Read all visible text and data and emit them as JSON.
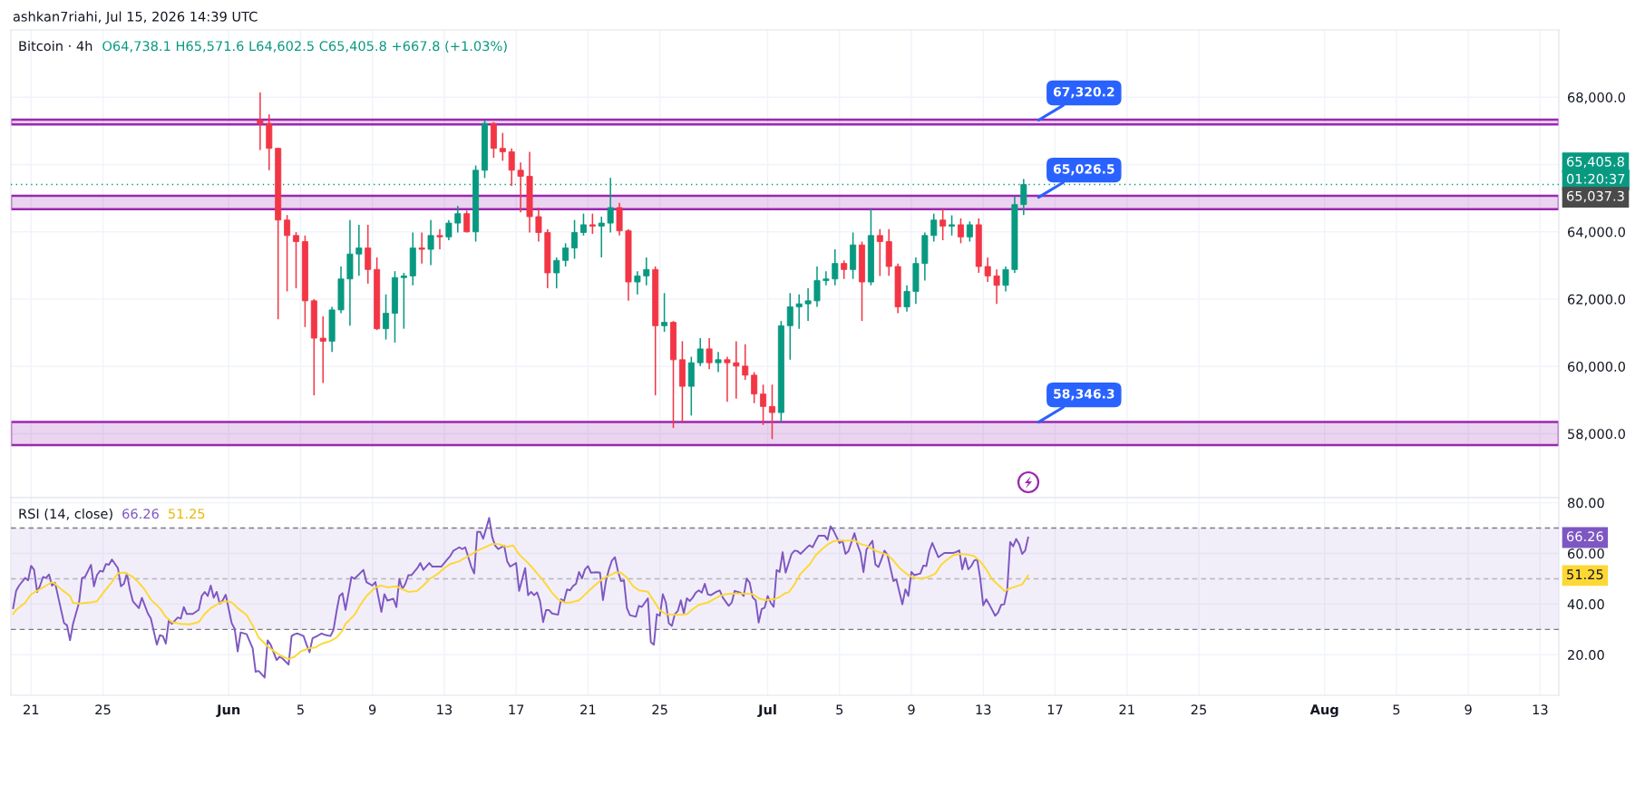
{
  "chart_data": [
    {
      "type": "candlestick",
      "title": "Bitcoin · 4h",
      "subtitle": "O64,738.1 H65,571.6 L64,602.5 C65,405.8 +667.8 (+1.03%)",
      "annotations": [
        "ashkan7riahi, Jul 15, 2026 14:39 UTC",
        "01:20:37",
        "65,037.3",
        {
          "text": "67,320.2",
          "x": "2026-07-16T02:00",
          "y": 67320.2
        },
        {
          "text": "65,026.5",
          "x": "2026-07-16T02:00",
          "y": 65026.5
        },
        {
          "text": "58,346.3",
          "x": "2026-07-16T02:00",
          "y": 58346.3
        }
      ],
      "x": [
        "2026-06-02T18:00",
        "2026-06-03T06:00",
        "2026-06-03T18:00",
        "2026-06-04T06:00",
        "2026-06-04T18:00",
        "2026-06-05T06:00",
        "2026-06-05T18:00",
        "2026-06-06T06:00",
        "2026-06-06T18:00",
        "2026-06-07T06:00",
        "2026-06-07T18:00",
        "2026-06-08T06:00",
        "2026-06-08T18:00",
        "2026-06-09T06:00",
        "2026-06-09T18:00",
        "2026-06-10T06:00",
        "2026-06-10T18:00",
        "2026-06-11T06:00",
        "2026-06-11T18:00",
        "2026-06-12T06:00",
        "2026-06-12T18:00",
        "2026-06-13T06:00",
        "2026-06-13T18:00",
        "2026-06-14T06:00",
        "2026-06-14T18:00",
        "2026-06-15T06:00",
        "2026-06-15T18:00",
        "2026-06-16T06:00",
        "2026-06-16T18:00",
        "2026-06-17T06:00",
        "2026-06-17T18:00",
        "2026-06-18T06:00",
        "2026-06-18T18:00",
        "2026-06-19T06:00",
        "2026-06-19T18:00",
        "2026-06-20T06:00",
        "2026-06-20T18:00",
        "2026-06-21T06:00",
        "2026-06-21T18:00",
        "2026-06-22T06:00",
        "2026-06-22T18:00",
        "2026-06-23T06:00",
        "2026-06-23T18:00",
        "2026-06-24T06:00",
        "2026-06-24T18:00",
        "2026-06-25T06:00",
        "2026-06-25T18:00",
        "2026-06-26T06:00",
        "2026-06-26T18:00",
        "2026-06-27T06:00",
        "2026-06-27T18:00",
        "2026-06-28T06:00",
        "2026-06-28T18:00",
        "2026-06-29T06:00",
        "2026-06-29T18:00",
        "2026-06-30T06:00",
        "2026-06-30T18:00",
        "2026-07-01T06:00",
        "2026-07-01T18:00",
        "2026-07-02T06:00",
        "2026-07-02T18:00",
        "2026-07-03T06:00",
        "2026-07-03T18:00",
        "2026-07-04T06:00",
        "2026-07-04T18:00",
        "2026-07-05T06:00",
        "2026-07-05T18:00",
        "2026-07-06T06:00",
        "2026-07-06T18:00",
        "2026-07-07T06:00",
        "2026-07-07T18:00",
        "2026-07-08T06:00",
        "2026-07-08T18:00",
        "2026-07-09T06:00",
        "2026-07-09T18:00",
        "2026-07-10T06:00",
        "2026-07-10T18:00",
        "2026-07-11T06:00",
        "2026-07-11T18:00",
        "2026-07-12T06:00",
        "2026-07-12T18:00",
        "2026-07-13T06:00",
        "2026-07-13T18:00",
        "2026-07-14T06:00",
        "2026-07-14T18:00",
        "2026-07-15T06:00"
      ],
      "ohlc": [
        [
          67310,
          68140,
          66430,
          67220
        ],
        [
          67220,
          67490,
          65830,
          66480
        ],
        [
          66480,
          66500,
          61400,
          64350
        ],
        [
          64350,
          64500,
          62230,
          63890
        ],
        [
          63890,
          63990,
          62320,
          63710
        ],
        [
          63710,
          63890,
          61170,
          61950
        ],
        [
          61950,
          62000,
          59140,
          60840
        ],
        [
          60840,
          61490,
          59510,
          60750
        ],
        [
          60750,
          61770,
          60430,
          61680
        ],
        [
          61680,
          62970,
          61580,
          62600
        ],
        [
          62600,
          64350,
          61210,
          63340
        ],
        [
          63340,
          64210,
          62690,
          63520
        ],
        [
          63520,
          64210,
          62460,
          62880
        ],
        [
          62880,
          63240,
          61080,
          61120
        ],
        [
          61120,
          62140,
          60800,
          61580
        ],
        [
          61580,
          62830,
          60710,
          62640
        ],
        [
          62640,
          62780,
          61120,
          62690
        ],
        [
          62690,
          63980,
          62410,
          63520
        ],
        [
          63520,
          63980,
          63060,
          63480
        ],
        [
          63480,
          64350,
          63010,
          63890
        ],
        [
          63890,
          64080,
          63480,
          63850
        ],
        [
          63850,
          64350,
          63750,
          64260
        ],
        [
          64260,
          64770,
          63980,
          64540
        ],
        [
          64540,
          64630,
          63980,
          64000
        ],
        [
          64000,
          65970,
          63710,
          65830
        ],
        [
          65830,
          67320,
          65600,
          67220
        ],
        [
          67220,
          67260,
          66200,
          66480
        ],
        [
          66480,
          66940,
          66110,
          66380
        ],
        [
          66380,
          66480,
          65370,
          65830
        ],
        [
          65830,
          66060,
          64580,
          65650
        ],
        [
          65650,
          66380,
          63980,
          64450
        ],
        [
          64450,
          64720,
          63710,
          63980
        ],
        [
          63980,
          64080,
          62320,
          62780
        ],
        [
          62780,
          63240,
          62320,
          63150
        ],
        [
          63150,
          63660,
          62970,
          63520
        ],
        [
          63520,
          64350,
          63200,
          63980
        ],
        [
          63980,
          64540,
          63890,
          64210
        ],
        [
          64210,
          64540,
          63940,
          64170
        ],
        [
          64170,
          64450,
          63240,
          64260
        ],
        [
          64260,
          65600,
          63980,
          64720
        ],
        [
          64720,
          64860,
          63890,
          64030
        ],
        [
          64030,
          64080,
          61950,
          62510
        ],
        [
          62510,
          62830,
          62140,
          62690
        ],
        [
          62690,
          63240,
          62410,
          62880
        ],
        [
          62880,
          62970,
          59140,
          61210
        ],
        [
          61210,
          62180,
          61030,
          61310
        ],
        [
          61310,
          61350,
          58170,
          60200
        ],
        [
          60200,
          60750,
          58350,
          59410
        ],
        [
          59410,
          60290,
          58540,
          60110
        ],
        [
          60110,
          60840,
          60010,
          60520
        ],
        [
          60520,
          60840,
          59920,
          60110
        ],
        [
          60110,
          60430,
          59830,
          60200
        ],
        [
          60200,
          60290,
          58950,
          60110
        ],
        [
          60110,
          60750,
          59040,
          60010
        ],
        [
          60010,
          60660,
          59600,
          59740
        ],
        [
          59740,
          59830,
          58910,
          59180
        ],
        [
          59180,
          59460,
          58260,
          58810
        ],
        [
          58810,
          59460,
          57840,
          58630
        ],
        [
          58630,
          61350,
          58350,
          61210
        ],
        [
          61210,
          62180,
          60200,
          61770
        ],
        [
          61770,
          62140,
          61120,
          61860
        ],
        [
          61860,
          62320,
          61350,
          61950
        ],
        [
          61950,
          62970,
          61770,
          62550
        ],
        [
          62550,
          62830,
          62410,
          62600
        ],
        [
          62600,
          63480,
          62410,
          63060
        ],
        [
          63060,
          63150,
          62600,
          62880
        ],
        [
          62880,
          63980,
          62600,
          63610
        ],
        [
          63610,
          63710,
          61350,
          62510
        ],
        [
          62510,
          64680,
          62410,
          63890
        ],
        [
          63890,
          64080,
          62690,
          63710
        ],
        [
          63710,
          64080,
          62690,
          62970
        ],
        [
          62970,
          63060,
          61580,
          61770
        ],
        [
          61770,
          62410,
          61630,
          62230
        ],
        [
          62230,
          63240,
          61860,
          63060
        ],
        [
          63060,
          63980,
          62550,
          63890
        ],
        [
          63890,
          64540,
          63710,
          64350
        ],
        [
          64350,
          64680,
          63750,
          64170
        ],
        [
          64170,
          64490,
          63890,
          64210
        ],
        [
          64210,
          64400,
          63660,
          63850
        ],
        [
          63850,
          64310,
          63710,
          64210
        ],
        [
          64210,
          64400,
          62780,
          62970
        ],
        [
          62970,
          63240,
          62510,
          62690
        ],
        [
          62690,
          62880,
          61860,
          62410
        ],
        [
          62410,
          62970,
          62230,
          62880
        ],
        [
          62880,
          65050,
          62780,
          64810
        ],
        [
          64810,
          65571.6,
          64500,
          65405.8
        ]
      ],
      "xlim": [
        "2026-05-19T21:00",
        "2026-08-14T01:00"
      ],
      "xticks": [
        {
          "value": "2026-05-21",
          "label": null
        },
        {
          "value": "2026-05-25",
          "label": null
        },
        {
          "value": "2026-06-01",
          "label": null
        },
        {
          "value": "2026-06-05",
          "label": null
        },
        {
          "value": "2026-06-09",
          "label": null
        },
        {
          "value": "2026-06-13",
          "label": null
        },
        {
          "value": "2026-06-17",
          "label": null
        },
        {
          "value": "2026-06-21",
          "label": null
        },
        {
          "value": "2026-06-25",
          "label": null
        },
        {
          "value": "2026-07-01",
          "label": null
        },
        {
          "value": "2026-07-05",
          "label": null
        },
        {
          "value": "2026-07-09",
          "label": null
        },
        {
          "value": "2026-07-13",
          "label": null
        },
        {
          "value": "2026-07-17",
          "label": null
        },
        {
          "value": "2026-07-21",
          "label": null
        },
        {
          "value": "2026-07-25",
          "label": null
        },
        {
          "value": "2026-08-01",
          "label": null
        },
        {
          "value": "2026-08-05",
          "label": null
        },
        {
          "value": "2026-08-09",
          "label": null
        },
        {
          "value": "2026-08-13",
          "label": null
        }
      ],
      "ylim": [
        56100,
        70000
      ],
      "yticks": [
        {
          "value": 58000,
          "label": "58,000.0"
        },
        {
          "value": 60000,
          "label": "60,000.0"
        },
        {
          "value": 62000,
          "label": "62,000.0"
        },
        {
          "value": 64000,
          "label": "64,000.0"
        },
        {
          "value": 66000,
          "label": null
        },
        {
          "value": 68000,
          "label": "68,000.0"
        }
      ],
      "tick_labels": "y",
      "grid": true,
      "bands": [
        {
          "axis": "y",
          "from": 67190,
          "to": 67330,
          "color": "#9c27b0"
        },
        {
          "axis": "y",
          "from": 64670,
          "to": 65070,
          "color": "#9c27b0"
        },
        {
          "axis": "y",
          "from": 57660,
          "to": 58346.3,
          "color": "#9c27b0"
        }
      ],
      "ref_lines": [
        {
          "axis": "y",
          "value": 65405.8,
          "label": "65,405.8",
          "color": "#089981",
          "line_style": "dotted"
        }
      ]
    },
    {
      "type": "line",
      "title": "RSI (14, close)",
      "annotations": [
        "66.26",
        "51.25"
      ],
      "series": [
        {
          "color": "#7e57c2",
          "x": [
            "2026-05-20T00:00",
            "2026-05-20T04:00",
            "2026-05-20T08:00",
            "2026-05-20T16:00",
            "2026-05-20T20:00",
            "2026-05-21T00:00",
            "2026-05-21T04:00",
            "2026-05-21T08:00",
            "2026-05-21T12:00",
            "2026-05-21T16:00",
            "2026-05-21T20:00",
            "2026-05-22T00:00",
            "2026-05-22T04:00",
            "2026-05-22T08:00",
            "2026-05-22T20:00",
            "2026-05-23T00:00",
            "2026-05-23T04:00",
            "2026-05-23T08:00",
            "2026-05-23T16:00",
            "2026-05-23T20:00",
            "2026-05-24T00:00",
            "2026-05-24T08:00",
            "2026-05-24T12:00",
            "2026-05-24T16:00",
            "2026-05-24T20:00",
            "2026-05-25T00:00",
            "2026-05-25T04:00",
            "2026-05-25T08:00",
            "2026-05-25T12:00",
            "2026-05-25T20:00",
            "2026-05-26T00:00",
            "2026-05-26T04:00",
            "2026-05-26T08:00",
            "2026-05-26T12:00",
            "2026-05-26T16:00",
            "2026-05-27T00:00",
            "2026-05-27T04:00",
            "2026-05-27T12:00",
            "2026-05-27T16:00",
            "2026-05-28T00:00",
            "2026-05-28T04:00",
            "2026-05-28T08:00",
            "2026-05-28T12:00",
            "2026-05-28T16:00",
            "2026-05-28T20:00",
            "2026-05-29T04:00",
            "2026-05-29T08:00",
            "2026-05-29T12:00",
            "2026-05-29T16:00",
            "2026-05-30T00:00",
            "2026-05-30T08:00",
            "2026-05-30T12:00",
            "2026-05-30T16:00",
            "2026-05-30T20:00",
            "2026-05-31T00:00",
            "2026-05-31T04:00",
            "2026-05-31T08:00",
            "2026-05-31T12:00",
            "2026-05-31T16:00",
            "2026-05-31T20:00",
            "2026-06-01T04:00",
            "2026-06-01T08:00",
            "2026-06-01T12:00",
            "2026-06-01T16:00",
            "2026-06-02T00:00",
            "2026-06-02T08:00",
            "2026-06-02T12:00",
            "2026-06-02T16:00",
            "2026-06-03T00:00",
            "2026-06-03T04:00",
            "2026-06-03T08:00",
            "2026-06-03T16:00",
            "2026-06-03T20:00",
            "2026-06-04T00:00",
            "2026-06-04T08:00",
            "2026-06-04T12:00",
            "2026-06-04T16:00",
            "2026-06-04T20:00",
            "2026-06-05T04:00",
            "2026-06-05T08:00",
            "2026-06-05T12:00",
            "2026-06-05T16:00",
            "2026-06-06T00:00",
            "2026-06-06T04:00",
            "2026-06-06T08:00",
            "2026-06-06T16:00",
            "2026-06-06T20:00",
            "2026-06-07T00:00",
            "2026-06-07T04:00",
            "2026-06-07T08:00",
            "2026-06-07T12:00",
            "2026-06-07T20:00",
            "2026-06-08T00:00",
            "2026-06-08T12:00",
            "2026-06-08T16:00",
            "2026-06-09T00:00",
            "2026-06-09T04:00",
            "2026-06-09T12:00",
            "2026-06-09T16:00",
            "2026-06-09T20:00",
            "2026-06-10T04:00",
            "2026-06-10T08:00",
            "2026-06-10T12:00",
            "2026-06-10T16:00",
            "2026-06-10T20:00",
            "2026-06-11T00:00",
            "2026-06-11T04:00",
            "2026-06-11T12:00",
            "2026-06-11T16:00",
            "2026-06-11T20:00",
            "2026-06-12T04:00",
            "2026-06-12T08:00",
            "2026-06-12T16:00",
            "2026-06-12T20:00",
            "2026-06-13T04:00",
            "2026-06-13T08:00",
            "2026-06-13T12:00",
            "2026-06-13T16:00",
            "2026-06-13T20:00",
            "2026-06-14T00:00",
            "2026-06-14T04:00",
            "2026-06-14T12:00",
            "2026-06-14T16:00",
            "2026-06-14T20:00",
            "2026-06-15T00:00",
            "2026-06-15T04:00",
            "2026-06-15T12:00",
            "2026-06-15T16:00",
            "2026-06-15T20:00",
            "2026-06-16T00:00",
            "2026-06-16T08:00",
            "2026-06-16T12:00",
            "2026-06-16T16:00",
            "2026-06-17T00:00",
            "2026-06-17T04:00",
            "2026-06-17T12:00",
            "2026-06-17T16:00",
            "2026-06-17T20:00",
            "2026-06-18T00:00",
            "2026-06-18T04:00",
            "2026-06-18T08:00",
            "2026-06-18T12:00",
            "2026-06-18T16:00",
            "2026-06-18T20:00",
            "2026-06-19T00:00",
            "2026-06-19T08:00",
            "2026-06-19T12:00",
            "2026-06-19T16:00",
            "2026-06-19T20:00",
            "2026-06-20T00:00",
            "2026-06-20T04:00",
            "2026-06-20T08:00",
            "2026-06-20T12:00",
            "2026-06-20T16:00",
            "2026-06-20T20:00",
            "2026-06-21T00:00",
            "2026-06-21T04:00",
            "2026-06-21T12:00",
            "2026-06-21T16:00",
            "2026-06-21T20:00",
            "2026-06-22T00:00",
            "2026-06-22T04:00",
            "2026-06-22T08:00",
            "2026-06-22T12:00",
            "2026-06-22T16:00",
            "2026-06-22T20:00",
            "2026-06-23T00:00",
            "2026-06-23T04:00",
            "2026-06-23T08:00",
            "2026-06-23T16:00",
            "2026-06-23T20:00",
            "2026-06-24T00:00",
            "2026-06-24T08:00",
            "2026-06-24T12:00",
            "2026-06-24T16:00",
            "2026-06-24T20:00",
            "2026-06-25T00:00",
            "2026-06-25T04:00",
            "2026-06-25T08:00",
            "2026-06-25T12:00",
            "2026-06-25T16:00",
            "2026-06-25T20:00",
            "2026-06-26T00:00",
            "2026-06-26T04:00",
            "2026-06-26T08:00",
            "2026-06-26T12:00",
            "2026-06-26T16:00",
            "2026-06-26T20:00",
            "2026-06-27T00:00",
            "2026-06-27T04:00",
            "2026-06-27T08:00",
            "2026-06-27T12:00",
            "2026-06-27T16:00",
            "2026-06-27T20:00",
            "2026-06-28T04:00",
            "2026-06-28T08:00",
            "2026-06-28T12:00",
            "2026-06-28T20:00",
            "2026-06-29T00:00",
            "2026-06-29T04:00",
            "2026-06-29T12:00",
            "2026-06-29T16:00",
            "2026-06-29T20:00",
            "2026-06-30T00:00",
            "2026-06-30T04:00",
            "2026-06-30T08:00",
            "2026-06-30T12:00",
            "2026-06-30T16:00",
            "2026-06-30T20:00",
            "2026-07-01T00:00",
            "2026-07-01T04:00",
            "2026-07-01T08:00",
            "2026-07-01T12:00",
            "2026-07-01T16:00",
            "2026-07-01T20:00",
            "2026-07-02T00:00",
            "2026-07-02T08:00",
            "2026-07-02T12:00",
            "2026-07-02T16:00",
            "2026-07-02T20:00",
            "2026-07-03T04:00",
            "2026-07-03T08:00",
            "2026-07-03T12:00",
            "2026-07-03T16:00",
            "2026-07-03T20:00",
            "2026-07-04T04:00",
            "2026-07-04T08:00",
            "2026-07-04T12:00",
            "2026-07-04T16:00",
            "2026-07-05T00:00",
            "2026-07-05T04:00",
            "2026-07-05T08:00",
            "2026-07-05T12:00",
            "2026-07-05T20:00",
            "2026-07-06T00:00",
            "2026-07-06T04:00",
            "2026-07-06T08:00",
            "2026-07-06T12:00",
            "2026-07-06T20:00",
            "2026-07-07T00:00",
            "2026-07-07T04:00",
            "2026-07-07T08:00",
            "2026-07-07T12:00",
            "2026-07-07T16:00",
            "2026-07-08T00:00",
            "2026-07-08T04:00",
            "2026-07-08T12:00",
            "2026-07-08T16:00",
            "2026-07-08T20:00",
            "2026-07-09T00:00",
            "2026-07-09T04:00",
            "2026-07-09T12:00",
            "2026-07-09T16:00",
            "2026-07-09T20:00",
            "2026-07-10T00:00",
            "2026-07-10T04:00",
            "2026-07-10T12:00",
            "2026-07-10T20:00",
            "2026-07-11T00:00",
            "2026-07-11T08:00",
            "2026-07-11T12:00",
            "2026-07-11T16:00",
            "2026-07-11T20:00",
            "2026-07-12T00:00",
            "2026-07-12T04:00",
            "2026-07-12T08:00",
            "2026-07-12T12:00",
            "2026-07-12T16:00",
            "2026-07-12T20:00",
            "2026-07-13T00:00",
            "2026-07-13T04:00",
            "2026-07-13T08:00",
            "2026-07-13T16:00",
            "2026-07-13T20:00",
            "2026-07-14T00:00",
            "2026-07-14T04:00",
            "2026-07-14T08:00",
            "2026-07-14T12:00",
            "2026-07-14T16:00",
            "2026-07-14T20:00",
            "2026-07-15T00:00",
            "2026-07-15T04:00",
            "2026-07-15T08:00",
            "2026-07-15T12:00"
          ],
          "values": [
            38.4,
            45.2,
            47.3,
            50.3,
            49.4,
            55.1,
            53.5,
            44.8,
            47.3,
            50.7,
            50.3,
            51.7,
            47.3,
            48.4,
            32.5,
            31.6,
            25.7,
            32.2,
            40.5,
            50.3,
            50.7,
            55.5,
            47.0,
            51.4,
            53.1,
            52.8,
            55.8,
            55.5,
            57.6,
            54.2,
            47.0,
            48.0,
            52.1,
            45.7,
            41.1,
            38.4,
            42.5,
            36.3,
            34.3,
            24.0,
            27.7,
            27.4,
            24.4,
            33.6,
            32.2,
            34.7,
            34.3,
            38.8,
            36.1,
            36.1,
            37.7,
            43.2,
            44.8,
            43.2,
            47.3,
            42.5,
            44.8,
            40.2,
            41.5,
            43.7,
            32.5,
            30.2,
            21.3,
            28.8,
            28.1,
            22.6,
            13.3,
            13.6,
            11.0,
            25.7,
            24.0,
            17.9,
            19.2,
            18.5,
            16.1,
            27.4,
            28.1,
            28.4,
            27.4,
            24.0,
            21.0,
            26.5,
            27.7,
            28.4,
            27.9,
            27.4,
            29.8,
            37.0,
            43.2,
            44.3,
            37.7,
            50.7,
            50.0,
            53.5,
            48.7,
            47.3,
            48.7,
            36.9,
            43.9,
            41.4,
            42.1,
            38.8,
            50.0,
            45.9,
            48.0,
            51.4,
            51.4,
            54.2,
            56.2,
            53.5,
            56.2,
            54.8,
            54.8,
            54.8,
            57.6,
            59.0,
            61.0,
            61.7,
            62.4,
            61.7,
            62.4,
            54.8,
            52.1,
            68.5,
            68.5,
            65.8,
            74.0,
            66.5,
            63.1,
            61.7,
            63.1,
            56.9,
            54.8,
            56.2,
            45.2,
            54.2,
            43.5,
            44.8,
            43.5,
            44.6,
            41.1,
            32.9,
            37.6,
            37.6,
            36.3,
            35.8,
            41.9,
            41.2,
            45.8,
            45.4,
            47.1,
            48.0,
            52.7,
            50.1,
            53.7,
            55.0,
            52.4,
            52.6,
            52.4,
            41.6,
            49.1,
            53.7,
            57.2,
            58.5,
            53.0,
            49.1,
            49.4,
            38.4,
            35.6,
            35.0,
            39.3,
            38.9,
            42.3,
            24.9,
            24.0,
            36.0,
            35.4,
            43.9,
            40.6,
            32.4,
            31.4,
            36.0,
            37.3,
            41.5,
            36.3,
            42.3,
            41.2,
            42.6,
            44.5,
            45.4,
            44.5,
            48.0,
            43.9,
            43.5,
            44.9,
            45.4,
            42.6,
            39.3,
            40.6,
            45.2,
            44.5,
            43.2,
            50.1,
            48.4,
            42.6,
            41.5,
            32.7,
            38.0,
            38.6,
            43.2,
            40.6,
            38.9,
            53.4,
            52.7,
            60.5,
            52.4,
            59.8,
            61.1,
            60.9,
            59.8,
            62.2,
            63.2,
            62.4,
            64.8,
            67.0,
            67.0,
            65.4,
            70.7,
            69.0,
            64.1,
            65.0,
            59.8,
            60.9,
            68.0,
            63.5,
            60.2,
            52.6,
            61.5,
            65.0,
            55.6,
            54.6,
            57.6,
            61.1,
            59.5,
            49.1,
            49.7,
            39.9,
            45.8,
            43.2,
            52.7,
            51.4,
            52.1,
            55.2,
            55.0,
            60.9,
            64.1,
            58.5,
            60.2,
            60.2,
            60.2,
            60.6,
            61.2,
            53.7,
            58.2,
            53.7,
            55.0,
            57.2,
            57.6,
            50.1,
            39.5,
            41.9,
            39.9,
            35.4,
            36.7,
            39.7,
            39.9,
            45.4,
            64.5,
            62.8,
            65.7,
            63.7,
            59.8,
            61.1,
            66.26
          ]
        },
        {
          "color": "#fdd835",
          "x": [
            "2026-05-20T00:00",
            "2026-05-20T04:00",
            "2026-05-20T16:00",
            "2026-05-21T00:00",
            "2026-05-21T08:00",
            "2026-05-21T20:00",
            "2026-05-22T04:00",
            "2026-05-22T08:00",
            "2026-05-22T16:00",
            "2026-05-23T04:00",
            "2026-05-23T08:00",
            "2026-05-23T16:00",
            "2026-05-24T08:00",
            "2026-05-24T16:00",
            "2026-05-25T00:00",
            "2026-05-25T12:00",
            "2026-05-25T20:00",
            "2026-05-26T04:00",
            "2026-05-26T16:00",
            "2026-05-27T00:00",
            "2026-05-27T08:00",
            "2026-05-27T16:00",
            "2026-05-28T04:00",
            "2026-05-28T12:00",
            "2026-05-28T20:00",
            "2026-05-29T08:00",
            "2026-05-29T20:00",
            "2026-05-30T08:00",
            "2026-05-30T16:00",
            "2026-05-31T00:00",
            "2026-05-31T12:00",
            "2026-05-31T20:00",
            "2026-06-01T04:00",
            "2026-06-01T12:00",
            "2026-06-02T00:00",
            "2026-06-02T08:00",
            "2026-06-02T16:00",
            "2026-06-03T04:00",
            "2026-06-03T12:00",
            "2026-06-03T20:00",
            "2026-06-04T08:00",
            "2026-06-04T16:00",
            "2026-06-05T00:00",
            "2026-06-05T12:00",
            "2026-06-05T20:00",
            "2026-06-06T04:00",
            "2026-06-06T16:00",
            "2026-06-07T00:00",
            "2026-06-07T08:00",
            "2026-06-07T12:00",
            "2026-06-08T00:00",
            "2026-06-08T08:00",
            "2026-06-08T16:00",
            "2026-06-09T04:00",
            "2026-06-09T12:00",
            "2026-06-09T20:00",
            "2026-06-10T08:00",
            "2026-06-10T16:00",
            "2026-06-11T00:00",
            "2026-06-11T12:00",
            "2026-06-11T20:00",
            "2026-06-12T04:00",
            "2026-06-12T16:00",
            "2026-06-13T00:00",
            "2026-06-13T08:00",
            "2026-06-13T20:00",
            "2026-06-14T04:00",
            "2026-06-14T12:00",
            "2026-06-14T20:00",
            "2026-06-15T08:00",
            "2026-06-15T16:00",
            "2026-06-16T00:00",
            "2026-06-16T12:00",
            "2026-06-16T20:00",
            "2026-06-17T04:00",
            "2026-06-17T16:00",
            "2026-06-18T00:00",
            "2026-06-18T08:00",
            "2026-06-18T16:00",
            "2026-06-19T00:00",
            "2026-06-19T08:00",
            "2026-06-19T16:00",
            "2026-06-20T00:00",
            "2026-06-20T12:00",
            "2026-06-20T16:00",
            "2026-06-21T00:00",
            "2026-06-21T08:00",
            "2026-06-21T16:00",
            "2026-06-21T20:00",
            "2026-06-22T08:00",
            "2026-06-22T12:00",
            "2026-06-22T20:00",
            "2026-06-23T04:00",
            "2026-06-23T12:00",
            "2026-06-23T20:00",
            "2026-06-24T08:00",
            "2026-06-24T16:00",
            "2026-06-25T00:00",
            "2026-06-25T08:00",
            "2026-06-25T20:00",
            "2026-06-26T04:00",
            "2026-06-26T12:00",
            "2026-06-26T20:00",
            "2026-06-27T04:00",
            "2026-06-27T16:00",
            "2026-06-28T00:00",
            "2026-06-28T08:00",
            "2026-06-28T16:00",
            "2026-06-29T00:00",
            "2026-06-29T12:00",
            "2026-06-29T20:00",
            "2026-06-30T04:00",
            "2026-06-30T12:00",
            "2026-06-30T20:00",
            "2026-07-01T08:00",
            "2026-07-01T16:00",
            "2026-07-02T00:00",
            "2026-07-02T04:00",
            "2026-07-02T12:00",
            "2026-07-02T20:00",
            "2026-07-03T08:00",
            "2026-07-03T16:00",
            "2026-07-04T00:00",
            "2026-07-04T08:00",
            "2026-07-04T16:00",
            "2026-07-05T00:00",
            "2026-07-05T08:00",
            "2026-07-05T20:00",
            "2026-07-06T04:00",
            "2026-07-06T12:00",
            "2026-07-07T00:00",
            "2026-07-07T08:00",
            "2026-07-07T16:00",
            "2026-07-08T00:00",
            "2026-07-08T08:00",
            "2026-07-08T20:00",
            "2026-07-09T04:00",
            "2026-07-09T12:00",
            "2026-07-09T20:00",
            "2026-07-10T08:00",
            "2026-07-10T16:00",
            "2026-07-11T00:00",
            "2026-07-11T08:00",
            "2026-07-11T16:00",
            "2026-07-12T04:00",
            "2026-07-12T12:00",
            "2026-07-12T20:00",
            "2026-07-13T04:00",
            "2026-07-13T12:00",
            "2026-07-14T00:00",
            "2026-07-14T04:00",
            "2026-07-14T12:00",
            "2026-07-14T20:00",
            "2026-07-15T04:00",
            "2026-07-15T12:00"
          ],
          "values": [
            36.1,
            37.7,
            40.5,
            43.9,
            45.2,
            47.3,
            48.7,
            48.0,
            45.9,
            43.2,
            40.5,
            40.2,
            40.7,
            41.1,
            44.3,
            48.7,
            52.1,
            52.5,
            50.7,
            48.4,
            45.6,
            41.8,
            38.4,
            35.0,
            32.9,
            32.2,
            32.0,
            32.9,
            36.1,
            38.4,
            40.5,
            41.1,
            40.7,
            38.4,
            35.7,
            31.6,
            26.8,
            23.3,
            21.5,
            19.9,
            18.3,
            19.2,
            21.3,
            22.6,
            22.9,
            24.3,
            25.4,
            26.8,
            29.5,
            32.2,
            35.7,
            39.8,
            43.2,
            46.6,
            47.3,
            46.6,
            47.0,
            45.9,
            44.8,
            45.2,
            47.3,
            49.8,
            52.1,
            54.2,
            55.8,
            56.9,
            58.3,
            59.6,
            61.0,
            62.6,
            63.7,
            63.7,
            62.6,
            63.1,
            59.6,
            56.2,
            53.5,
            50.7,
            47.8,
            44.5,
            41.9,
            40.6,
            40.6,
            41.5,
            42.6,
            44.9,
            47.1,
            49.1,
            50.1,
            51.7,
            52.5,
            52.4,
            50.4,
            47.1,
            45.4,
            44.9,
            41.2,
            37.6,
            36.0,
            35.8,
            35.8,
            36.0,
            38.0,
            39.7,
            40.6,
            41.9,
            43.2,
            43.9,
            44.1,
            44.2,
            44.1,
            43.9,
            42.3,
            41.6,
            41.9,
            42.8,
            44.4,
            44.6,
            47.8,
            52.0,
            55.6,
            59.2,
            61.5,
            63.5,
            64.8,
            65.2,
            65.0,
            65.2,
            63.7,
            63.1,
            61.1,
            60.2,
            59.5,
            57.2,
            54.3,
            51.4,
            50.4,
            50.1,
            50.4,
            52.0,
            55.6,
            57.6,
            59.3,
            59.8,
            59.5,
            58.9,
            56.9,
            53.7,
            49.7,
            46.5,
            45.2,
            46.2,
            47.0,
            47.8,
            51.25
          ]
        }
      ],
      "xlim": [
        "2026-05-19T21:00",
        "2026-08-14T01:00"
      ],
      "xticks": [
        {
          "value": "2026-05-21",
          "label": "21"
        },
        {
          "value": "2026-05-25",
          "label": "25"
        },
        {
          "value": "2026-06-01",
          "label": "Jun"
        },
        {
          "value": "2026-06-05",
          "label": "5"
        },
        {
          "value": "2026-06-09",
          "label": "9"
        },
        {
          "value": "2026-06-13",
          "label": "13"
        },
        {
          "value": "2026-06-17",
          "label": "17"
        },
        {
          "value": "2026-06-21",
          "label": "21"
        },
        {
          "value": "2026-06-25",
          "label": "25"
        },
        {
          "value": "2026-07-01",
          "label": "Jul"
        },
        {
          "value": "2026-07-05",
          "label": "5"
        },
        {
          "value": "2026-07-09",
          "label": "9"
        },
        {
          "value": "2026-07-13",
          "label": "13"
        },
        {
          "value": "2026-07-17",
          "label": "17"
        },
        {
          "value": "2026-07-21",
          "label": "21"
        },
        {
          "value": "2026-07-25",
          "label": "25"
        },
        {
          "value": "2026-08-01",
          "label": "Aug"
        },
        {
          "value": "2026-08-05",
          "label": "5"
        },
        {
          "value": "2026-08-09",
          "label": "9"
        },
        {
          "value": "2026-08-13",
          "label": "13"
        }
      ],
      "ylim": [
        4,
        82
      ],
      "yticks": [
        {
          "value": 20,
          "label": "20.00"
        },
        {
          "value": 40,
          "label": "40.00"
        },
        {
          "value": 60,
          "label": "60.00"
        },
        {
          "value": 80,
          "label": "80.00"
        }
      ],
      "grid": true,
      "bands": [
        {
          "axis": "y",
          "from": 30,
          "to": 70,
          "color": "#7e57c2"
        }
      ],
      "ref_lines": [
        {
          "axis": "y",
          "value": 70,
          "color": "#787b86",
          "line_style": "dashed"
        },
        {
          "axis": "y",
          "value": 50,
          "color": "#b2b5be",
          "line_style": "dashed"
        },
        {
          "axis": "y",
          "value": 30,
          "color": "#787b86",
          "line_style": "dashed"
        }
      ]
    }
  ]
}
